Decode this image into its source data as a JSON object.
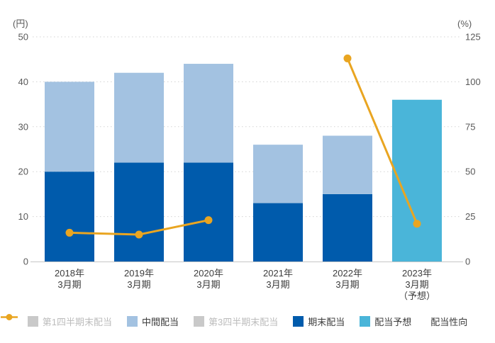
{
  "chart_data": {
    "type": "bar",
    "subtype": "stacked-bar-with-line",
    "title": "",
    "categories": [
      [
        "2018年",
        "3月期"
      ],
      [
        "2019年",
        "3月期"
      ],
      [
        "2020年",
        "3月期"
      ],
      [
        "2021年",
        "3月期"
      ],
      [
        "2022年",
        "3月期"
      ],
      [
        "2023年",
        "3月期",
        "（予想）"
      ]
    ],
    "bar_series": [
      {
        "key": "yearend_dividend",
        "name": "期末配当",
        "color": "#005bac",
        "values": [
          20,
          22,
          22,
          13,
          15,
          null
        ]
      },
      {
        "key": "interim_dividend",
        "name": "中間配当",
        "color": "#a3c2e1",
        "values": [
          20,
          20,
          22,
          13,
          13,
          null
        ]
      },
      {
        "key": "forecast_dividend",
        "name": "配当予想",
        "color": "#4ab5d9",
        "values": [
          null,
          null,
          null,
          null,
          null,
          36
        ]
      }
    ],
    "line_series": {
      "key": "payout_ratio",
      "name": "配当性向",
      "color": "#e9a521",
      "axis": "right",
      "values": [
        16,
        15,
        23,
        null,
        113,
        21
      ]
    },
    "left_axis": {
      "unit": "(円)",
      "min": 0,
      "max": 50,
      "ticks": [
        0,
        10,
        20,
        30,
        40,
        50
      ]
    },
    "right_axis": {
      "unit": "(%)",
      "min": 0,
      "max": 125,
      "ticks": [
        0,
        25,
        50,
        75,
        100,
        125
      ]
    },
    "grid": {
      "show": true,
      "style": "dotted",
      "color": "#d3d3d3"
    },
    "legend_position": "bottom",
    "legend": [
      {
        "key": "q1_dividend",
        "label": "第1四半期末配当",
        "type": "swatch",
        "color": "#c9c9c9",
        "inactive": true
      },
      {
        "key": "interim_dividend",
        "label": "中間配当",
        "type": "swatch",
        "color": "#a3c2e1",
        "inactive": false
      },
      {
        "key": "q3_dividend",
        "label": "第3四半期末配当",
        "type": "swatch",
        "color": "#c9c9c9",
        "inactive": true
      },
      {
        "key": "yearend_dividend",
        "label": "期末配当",
        "type": "swatch",
        "color": "#005bac",
        "inactive": false
      },
      {
        "key": "forecast_dividend",
        "label": "配当予想",
        "type": "swatch",
        "color": "#4ab5d9",
        "inactive": false
      },
      {
        "key": "payout_ratio",
        "label": "配当性向",
        "type": "line-marker",
        "color": "#e9a521",
        "inactive": false
      }
    ]
  }
}
